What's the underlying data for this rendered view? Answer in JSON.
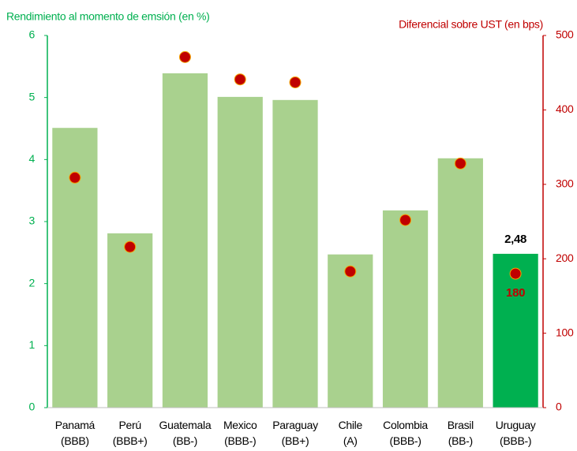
{
  "chart_data": {
    "type": "bar",
    "y_label": "Rendimiento al momento de emsión (en %)",
    "y2_label": "Diferencial sobre UST (en bps)",
    "categories": [
      "Panamá\n(BBB)",
      "Perú\n(BBB+)",
      "Guatemala\n(BB-)",
      "Mexico\n(BBB-)",
      "Paraguay\n(BB+)",
      "Chile\n(A)",
      "Colombia\n(BBB-)",
      "Brasil\n(BB-)",
      "Uruguay\n(BBB-)"
    ],
    "series": [
      {
        "type": "bar",
        "colors": [
          "#a9d18e",
          "#a9d18e",
          "#a9d18e",
          "#a9d18e",
          "#a9d18e",
          "#a9d18e",
          "#a9d18e",
          "#a9d18e",
          "#00b050"
        ],
        "values": [
          4.51,
          2.81,
          5.39,
          5.01,
          4.96,
          2.47,
          3.18,
          4.02,
          2.48
        ],
        "value_labels": [
          null,
          null,
          null,
          null,
          null,
          null,
          null,
          null,
          "2,48"
        ]
      },
      {
        "type": "scatter",
        "axis": "y2",
        "color": "#c00000",
        "values": [
          309,
          216,
          471,
          441,
          437,
          183,
          252,
          328,
          180
        ],
        "value_labels": [
          null,
          null,
          null,
          null,
          null,
          null,
          null,
          null,
          "180"
        ]
      }
    ],
    "ylim": [
      0,
      6
    ],
    "yticks": [
      0,
      1,
      2,
      3,
      4,
      5,
      6
    ],
    "y2lim": [
      0,
      500
    ],
    "y2ticks": [
      0,
      100,
      200,
      300,
      400,
      500
    ]
  }
}
